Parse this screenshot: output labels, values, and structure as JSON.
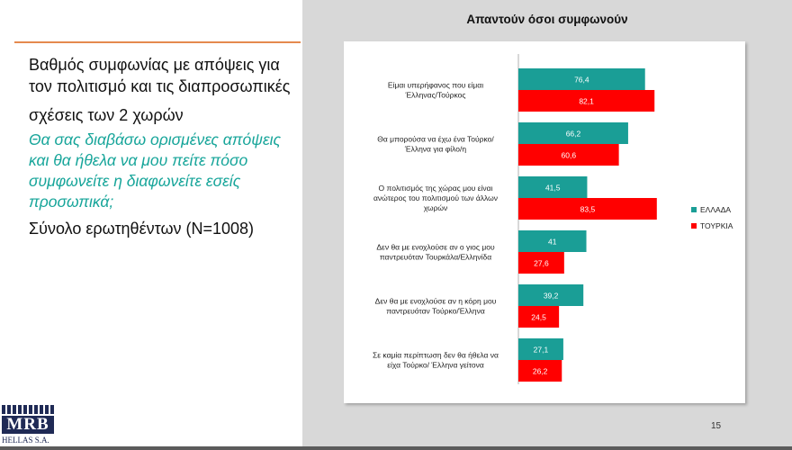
{
  "slide": {
    "heading_line1": "Βαθμός συμφωνίας με απόψεις για τον πολιτισμό και τις διαπροσωπικές",
    "heading_line2": "σχέσεις των 2 χωρών",
    "instruction": "Θα σας διαβάσω ορισμένες απόψεις και θα ήθελα να μου πείτε πόσο συμφωνείτε η διαφωνείτε εσείς προσωπικά;",
    "total": "Σύνολο ερωτηθέντων (N=1008)",
    "page_number": "15",
    "logo_text": "MRB",
    "logo_subtext": "HELLAS S.A."
  },
  "colors": {
    "greece": "#1a9e96",
    "turkey": "#ff0000",
    "divider": "#e58a4e",
    "instruction": "#17a59a"
  },
  "chart_data": {
    "type": "bar",
    "orientation": "horizontal",
    "title": "Απαντούν όσοι συμφωνούν",
    "categories": [
      [
        "Είμαι υπερήφανος που είμαι",
        "Έλληνας/Τούρκος"
      ],
      [
        "Θα μπορούσα να έχω ένα Τούρκο/",
        "Έλληνα για φίλο/η"
      ],
      [
        "Ο πολιτισμός της χώρας μου είναι",
        "ανώτερος του πολιτισμού των άλλων",
        "χωρών"
      ],
      [
        "Δεν θα με ενοχλούσε αν ο γιος μου",
        "παντρευόταν Τουρκάλα/Ελληνίδα"
      ],
      [
        "Δεν θα με ενοχλούσε αν η κόρη μου",
        "παντρευόταν Τούρκο/Έλληνα"
      ],
      [
        "Σε καμία περίπτωση δεν θα ήθελα να",
        "είχα Τούρκο/ Έλληνα γείτονα"
      ]
    ],
    "series": [
      {
        "name": "ΕΛΛΑΔΑ",
        "values": [
          76.4,
          66.2,
          41.5,
          41,
          39.2,
          27.1
        ],
        "labels": [
          "76,4",
          "66,2",
          "41,5",
          "41",
          "39,2",
          "27,1"
        ]
      },
      {
        "name": "ΤΟΥΡΚΙΑ",
        "values": [
          82.1,
          60.6,
          83.5,
          27.6,
          24.5,
          26.2
        ],
        "labels": [
          "82,1",
          "60,6",
          "83,5",
          "27,6",
          "24,5",
          "26,2"
        ]
      }
    ],
    "xlim": [
      0,
      100
    ],
    "legend_position": "right",
    "grid": false
  }
}
